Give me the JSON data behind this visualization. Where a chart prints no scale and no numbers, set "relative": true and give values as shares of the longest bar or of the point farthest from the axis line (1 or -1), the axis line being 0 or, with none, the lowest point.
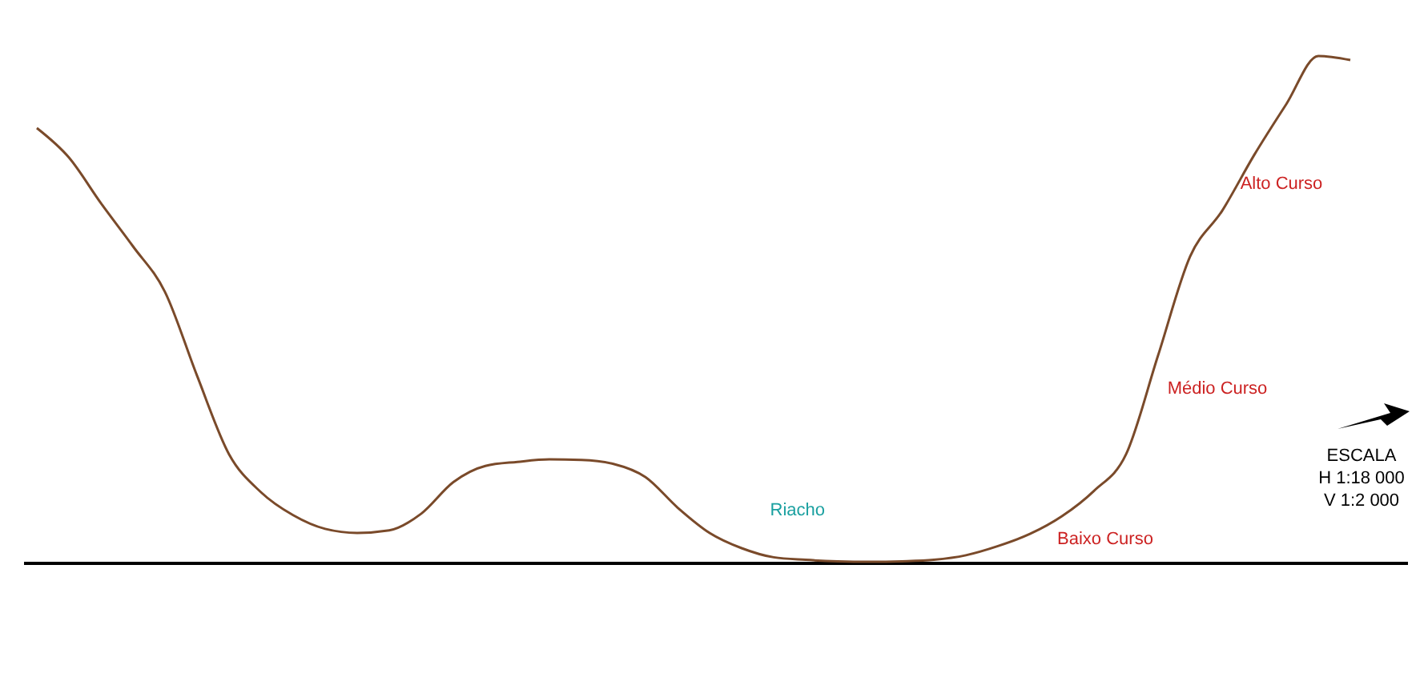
{
  "chart_data": {
    "type": "line",
    "relative": true,
    "categories": [
      null,
      null,
      null,
      null,
      null,
      null,
      null,
      null,
      null,
      null,
      null,
      null,
      null,
      null,
      null,
      null,
      null,
      null,
      null,
      null,
      null,
      null,
      null,
      null,
      null,
      null,
      null,
      null,
      null,
      null,
      null,
      null,
      null,
      null,
      null,
      null,
      null,
      null,
      null,
      null,
      null,
      null
    ],
    "series": [
      {
        "color": "#7a4a2a",
        "values": [
          0.858,
          0.8,
          0.71,
          0.625,
          0.535,
          0.37,
          0.215,
          0.14,
          0.095,
          0.068,
          0.06,
          0.065,
          0.098,
          0.16,
          0.192,
          0.2,
          0.205,
          0.204,
          0.196,
          0.17,
          0.11,
          0.06,
          0.03,
          0.012,
          0.007,
          0.004,
          0.003,
          0.004,
          0.007,
          0.016,
          0.034,
          0.058,
          0.093,
          0.143,
          0.215,
          0.41,
          0.605,
          0.695,
          0.805,
          0.905,
          1,
          0.992
        ]
      }
    ],
    "annotations": [
      "Alto Curso",
      "Médio Curso",
      "Baixo Curso",
      "Riacho",
      "ESCALA",
      "H 1:18 000",
      "V 1:2 000"
    ],
    "marker": "none",
    "line_style": "solid"
  }
}
